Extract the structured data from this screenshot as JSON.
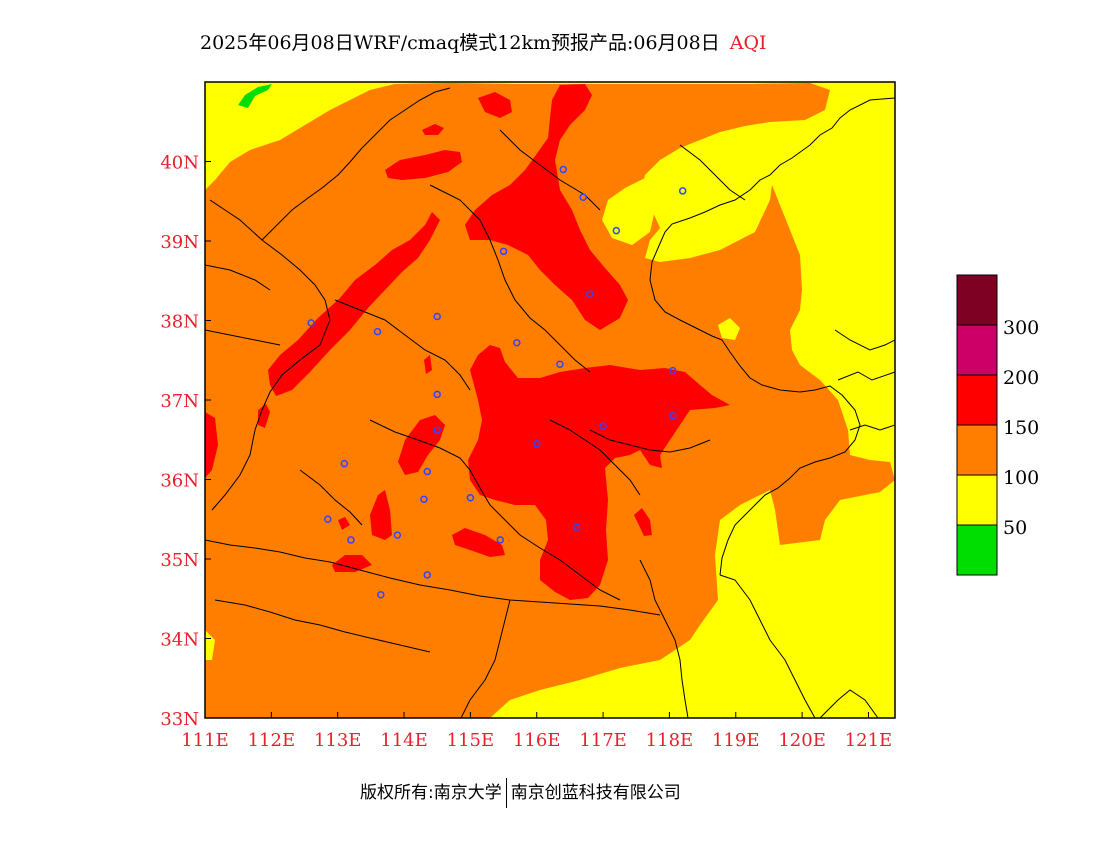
{
  "title": {
    "main": "2025年06月08日WRF/cmaq模式12km预报产品:06月08日",
    "variable": "AQI"
  },
  "map": {
    "lon_range": [
      111,
      121.4
    ],
    "lat_range": [
      33,
      41
    ],
    "lon_ticks": [
      "111E",
      "112E",
      "113E",
      "114E",
      "115E",
      "116E",
      "117E",
      "118E",
      "119E",
      "120E",
      "121E"
    ],
    "lat_ticks": [
      "33N",
      "34N",
      "35N",
      "36N",
      "37N",
      "38N",
      "39N",
      "40N"
    ],
    "colors": {
      "good": "#00dd00",
      "moderate": "#ffff00",
      "unhealthy_sensitive": "#ff7e00",
      "unhealthy": "#ff0000",
      "very_unhealthy": "#cc0066",
      "hazardous": "#7e0023",
      "city_marker": "#3344ff",
      "axis": "#e8202a"
    },
    "cities": [
      {
        "name": "city",
        "lon": 116.4,
        "lat": 39.9
      },
      {
        "name": "city",
        "lon": 116.7,
        "lat": 39.55
      },
      {
        "name": "city",
        "lon": 117.2,
        "lat": 39.13
      },
      {
        "name": "city",
        "lon": 118.2,
        "lat": 39.63
      },
      {
        "name": "city",
        "lon": 115.5,
        "lat": 38.87
      },
      {
        "name": "city",
        "lon": 116.8,
        "lat": 38.33
      },
      {
        "name": "city",
        "lon": 112.6,
        "lat": 37.97
      },
      {
        "name": "city",
        "lon": 113.6,
        "lat": 37.86
      },
      {
        "name": "city",
        "lon": 114.5,
        "lat": 38.05
      },
      {
        "name": "city",
        "lon": 115.7,
        "lat": 37.72
      },
      {
        "name": "city",
        "lon": 116.35,
        "lat": 37.45
      },
      {
        "name": "city",
        "lon": 118.05,
        "lat": 37.37
      },
      {
        "name": "city",
        "lon": 114.5,
        "lat": 37.07
      },
      {
        "name": "city",
        "lon": 118.05,
        "lat": 36.8
      },
      {
        "name": "city",
        "lon": 117.0,
        "lat": 36.67
      },
      {
        "name": "city",
        "lon": 114.5,
        "lat": 36.62
      },
      {
        "name": "city",
        "lon": 116.0,
        "lat": 36.45
      },
      {
        "name": "city",
        "lon": 113.1,
        "lat": 36.2
      },
      {
        "name": "city",
        "lon": 114.35,
        "lat": 36.1
      },
      {
        "name": "city",
        "lon": 114.3,
        "lat": 35.75
      },
      {
        "name": "city",
        "lon": 115.0,
        "lat": 35.77
      },
      {
        "name": "city",
        "lon": 112.85,
        "lat": 35.5
      },
      {
        "name": "city",
        "lon": 116.6,
        "lat": 35.4
      },
      {
        "name": "city",
        "lon": 113.9,
        "lat": 35.3
      },
      {
        "name": "city",
        "lon": 113.2,
        "lat": 35.24
      },
      {
        "name": "city",
        "lon": 115.45,
        "lat": 35.24
      },
      {
        "name": "city",
        "lon": 114.35,
        "lat": 34.8
      },
      {
        "name": "city",
        "lon": 113.65,
        "lat": 34.55
      }
    ]
  },
  "colorbar": {
    "labels": [
      "300",
      "200",
      "150",
      "100",
      "50"
    ]
  },
  "footer": {
    "left": "版权所有:南京大学",
    "right": "南京创蓝科技有限公司"
  }
}
